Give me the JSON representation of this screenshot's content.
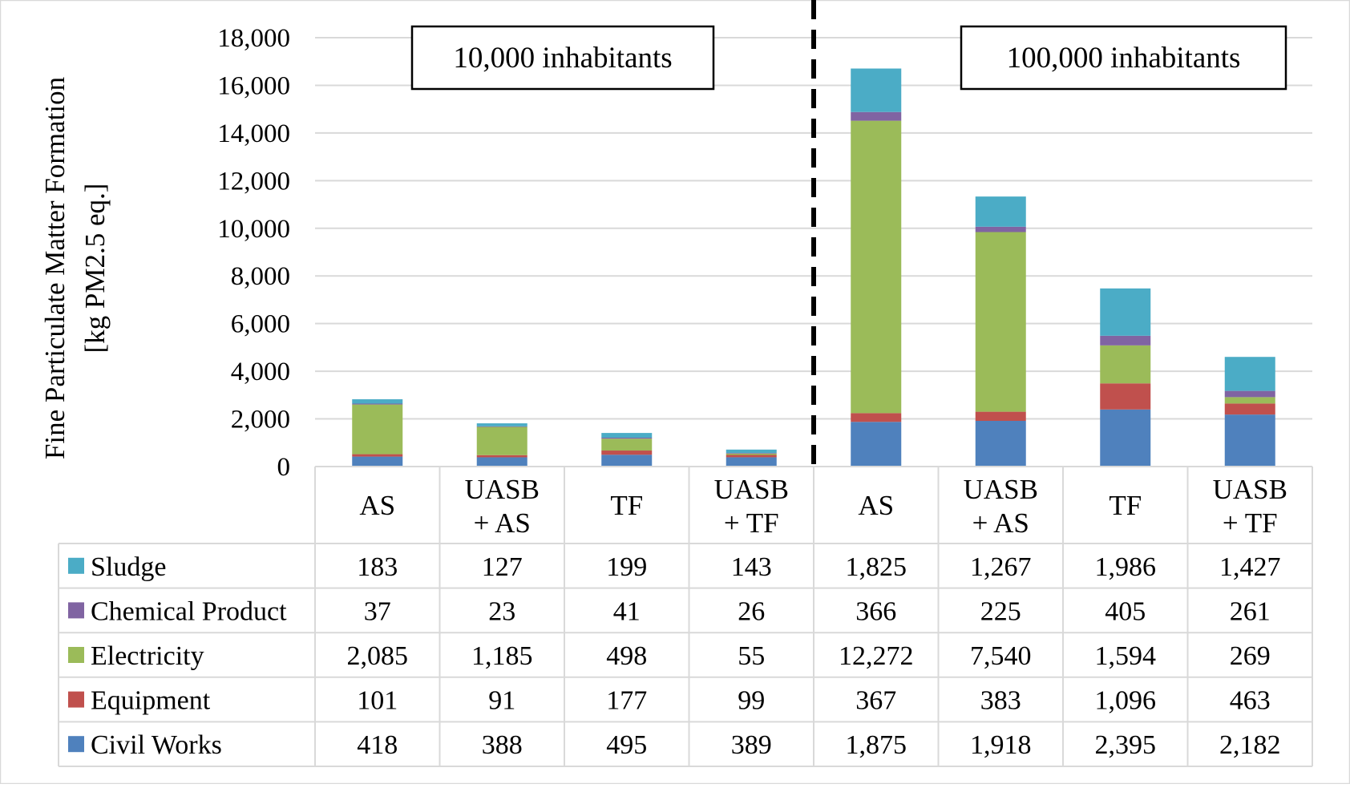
{
  "chart_data": {
    "type": "bar",
    "stacked": true,
    "ylabel_lines": [
      "Fine Particulate Matter Formation",
      "[kg PM2.5 eq.]"
    ],
    "ylim": [
      0,
      18000
    ],
    "yticks": [
      {
        "value": 0,
        "label": "0"
      },
      {
        "value": 2000,
        "label": "2,000"
      },
      {
        "value": 4000,
        "label": "4,000"
      },
      {
        "value": 6000,
        "label": "6,000"
      },
      {
        "value": 8000,
        "label": "8,000"
      },
      {
        "value": 10000,
        "label": "10,000"
      },
      {
        "value": 12000,
        "label": "12,000"
      },
      {
        "value": 14000,
        "label": "14,000"
      },
      {
        "value": 16000,
        "label": "16,000"
      },
      {
        "value": 18000,
        "label": "18,000"
      }
    ],
    "grid": true,
    "legend_placement": "table-left",
    "groups": [
      {
        "label": "10,000 inhabitants"
      },
      {
        "label": "100,000 inhabitants"
      }
    ],
    "categories": [
      [
        "AS"
      ],
      [
        "UASB",
        "+ AS"
      ],
      [
        "TF"
      ],
      [
        "UASB",
        "+ TF"
      ],
      [
        "AS"
      ],
      [
        "UASB",
        "+ AS"
      ],
      [
        "TF"
      ],
      [
        "UASB",
        "+ TF"
      ]
    ],
    "series": [
      {
        "name": "Civil Works",
        "color": "#4f81bd",
        "values": [
          418,
          388,
          495,
          389,
          1875,
          1918,
          2395,
          2182
        ],
        "labels": [
          "418",
          "388",
          "495",
          "389",
          "1,875",
          "1,918",
          "2,395",
          "2,182"
        ]
      },
      {
        "name": "Equipment",
        "color": "#c0504d",
        "values": [
          101,
          91,
          177,
          99,
          367,
          383,
          1096,
          463
        ],
        "labels": [
          "101",
          "91",
          "177",
          "99",
          "367",
          "383",
          "1,096",
          "463"
        ]
      },
      {
        "name": "Electricity",
        "color": "#9bbb59",
        "values": [
          2085,
          1185,
          498,
          55,
          12272,
          7540,
          1594,
          269
        ],
        "labels": [
          "2,085",
          "1,185",
          "498",
          "55",
          "12,272",
          "7,540",
          "1,594",
          "269"
        ]
      },
      {
        "name": "Chemical Product",
        "color": "#8064a2",
        "values": [
          37,
          23,
          41,
          26,
          366,
          225,
          405,
          261
        ],
        "labels": [
          "37",
          "23",
          "41",
          "26",
          "366",
          "225",
          "405",
          "261"
        ]
      },
      {
        "name": "Sludge",
        "color": "#4bacc6",
        "values": [
          183,
          127,
          199,
          143,
          1825,
          1267,
          1986,
          1427
        ],
        "labels": [
          "183",
          "127",
          "199",
          "143",
          "1,825",
          "1,267",
          "1,986",
          "1,427"
        ]
      }
    ],
    "table_row_order": [
      "Sludge",
      "Chemical Product",
      "Electricity",
      "Equipment",
      "Civil Works"
    ]
  }
}
